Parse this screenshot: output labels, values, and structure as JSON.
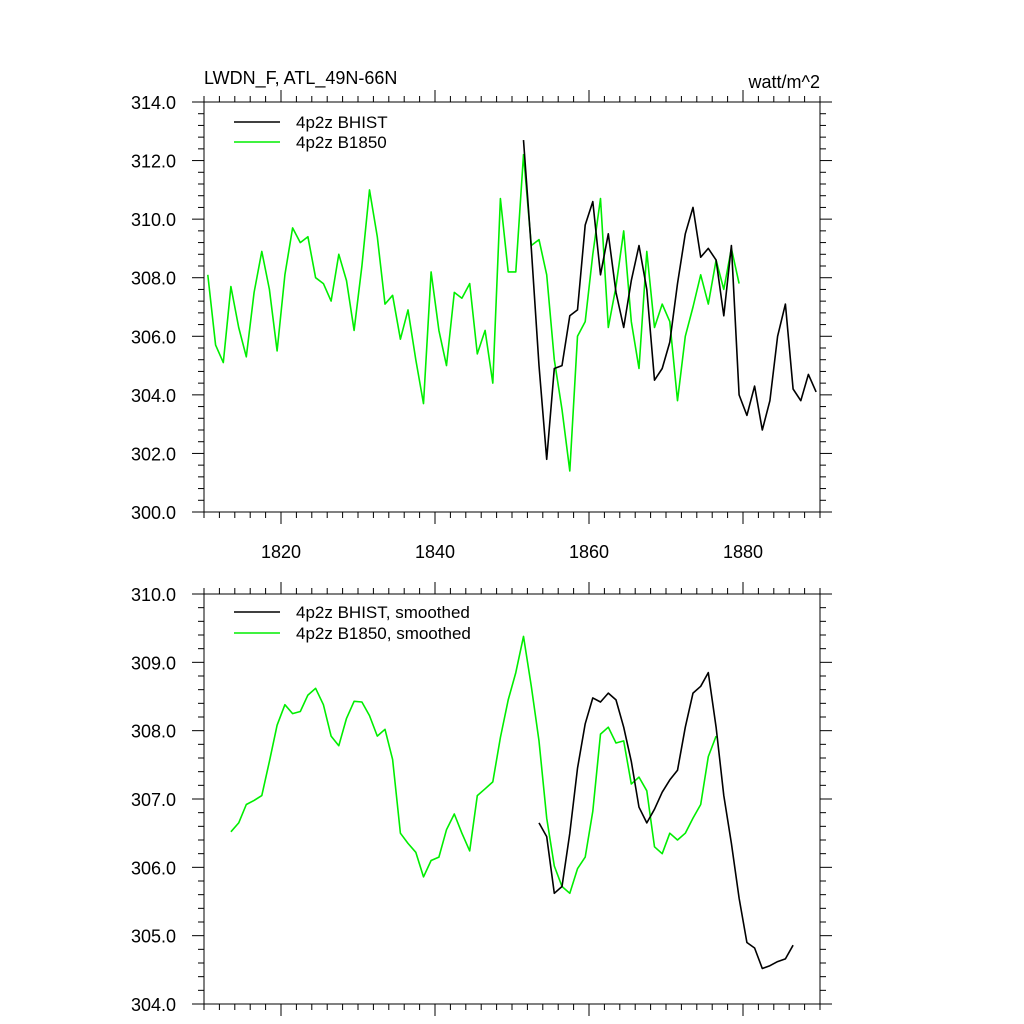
{
  "title_left": "LWDN_F, ATL_49N-66N",
  "title_right": "watt/m^2",
  "colors": {
    "bhist": "#000000",
    "b1850": "#00ee00"
  },
  "chart_data": [
    {
      "type": "line",
      "title": "LWDN_F, ATL_49N-66N",
      "units": "watt/m^2",
      "xlim": [
        1810,
        1890
      ],
      "ylim": [
        300,
        314
      ],
      "xticks": [
        1820,
        1840,
        1860,
        1880
      ],
      "xtick_labels": [
        "1820",
        "1840",
        "1860",
        "1880"
      ],
      "yticks": [
        300,
        302,
        304,
        306,
        308,
        310,
        312,
        314
      ],
      "ytick_labels": [
        "300.0",
        "302.0",
        "304.0",
        "306.0",
        "308.0",
        "310.0",
        "312.0",
        "314.0"
      ],
      "legend_position": "top-left",
      "series": [
        {
          "name": "4p2z BHIST",
          "color": "#000000",
          "x": [
            1851.5,
            1852.5,
            1853.5,
            1854.5,
            1855.5,
            1856.5,
            1857.5,
            1858.5,
            1859.5,
            1860.5,
            1861.5,
            1862.5,
            1863.5,
            1864.5,
            1865.5,
            1866.5,
            1867.5,
            1868.5,
            1869.5,
            1870.5,
            1871.5,
            1872.5,
            1873.5,
            1874.5,
            1875.5,
            1876.5,
            1877.5,
            1878.5,
            1879.5,
            1880.5,
            1881.5,
            1882.5,
            1883.5,
            1884.5,
            1885.5,
            1886.5,
            1887.5,
            1888.5,
            1889.5
          ],
          "y": [
            312.7,
            309.0,
            305.0,
            301.8,
            304.9,
            305.0,
            306.7,
            306.9,
            309.8,
            310.6,
            308.1,
            309.5,
            307.5,
            306.3,
            307.9,
            309.1,
            307.6,
            304.5,
            304.9,
            305.8,
            307.8,
            309.5,
            310.4,
            308.7,
            309.0,
            308.6,
            306.7,
            309.1,
            304.0,
            303.3,
            304.3,
            302.8,
            303.8,
            306.0,
            307.1,
            304.2,
            303.8,
            304.7,
            304.1
          ]
        },
        {
          "name": "4p2z B1850",
          "color": "#00ee00",
          "x": [
            1810.5,
            1811.5,
            1812.5,
            1813.5,
            1814.5,
            1815.5,
            1816.5,
            1817.5,
            1818.5,
            1819.5,
            1820.5,
            1821.5,
            1822.5,
            1823.5,
            1824.5,
            1825.5,
            1826.5,
            1827.5,
            1828.5,
            1829.5,
            1830.5,
            1831.5,
            1832.5,
            1833.5,
            1834.5,
            1835.5,
            1836.5,
            1837.5,
            1838.5,
            1839.5,
            1840.5,
            1841.5,
            1842.5,
            1843.5,
            1844.5,
            1845.5,
            1846.5,
            1847.5,
            1848.5,
            1849.5,
            1850.5,
            1851.5,
            1852.5,
            1853.5,
            1854.5,
            1855.5,
            1856.5,
            1857.5,
            1858.5,
            1859.5,
            1860.5,
            1861.5,
            1862.5,
            1863.5,
            1864.5,
            1865.5,
            1866.5,
            1867.5,
            1868.5,
            1869.5,
            1870.5,
            1871.5,
            1872.5,
            1873.5,
            1874.5,
            1875.5,
            1876.5,
            1877.5,
            1878.5,
            1879.5
          ],
          "y": [
            308.1,
            305.7,
            305.1,
            307.7,
            306.3,
            305.3,
            307.5,
            308.9,
            307.6,
            305.5,
            308.1,
            309.7,
            309.2,
            309.4,
            308.0,
            307.8,
            307.2,
            308.8,
            307.9,
            306.2,
            308.4,
            311.0,
            309.4,
            307.1,
            307.4,
            305.9,
            306.9,
            305.2,
            303.7,
            308.2,
            306.2,
            305.0,
            307.5,
            307.3,
            307.8,
            305.4,
            306.2,
            304.4,
            310.7,
            308.2,
            308.2,
            312.2,
            309.1,
            309.3,
            308.1,
            305.2,
            303.5,
            301.4,
            306.0,
            306.5,
            308.8,
            310.7,
            306.3,
            307.7,
            309.6,
            306.5,
            304.9,
            308.9,
            306.3,
            307.1,
            306.5,
            303.8,
            306.0,
            307.0,
            308.1,
            307.1,
            308.6,
            307.6,
            309.0,
            307.8
          ]
        }
      ]
    },
    {
      "type": "line",
      "xlim": [
        1810,
        1890
      ],
      "ylim": [
        304,
        310
      ],
      "xticks": [
        1820,
        1840,
        1860,
        1880
      ],
      "yticks": [
        304,
        305,
        306,
        307,
        308,
        309,
        310
      ],
      "ytick_labels": [
        "304.0",
        "305.0",
        "306.0",
        "307.0",
        "308.0",
        "309.0",
        "310.0"
      ],
      "legend_position": "top-left",
      "series": [
        {
          "name": "4p2z BHIST, smoothed",
          "color": "#000000",
          "x": [
            1853.5,
            1854.5,
            1855.5,
            1856.5,
            1857.5,
            1858.5,
            1859.5,
            1860.5,
            1861.5,
            1862.5,
            1863.5,
            1864.5,
            1865.5,
            1866.5,
            1867.5,
            1868.5,
            1869.5,
            1870.5,
            1871.5,
            1872.5,
            1873.5,
            1874.5,
            1875.5,
            1876.5,
            1877.5,
            1878.5,
            1879.5,
            1880.5,
            1881.5,
            1882.5,
            1883.5,
            1884.5,
            1885.5,
            1886.5
          ],
          "y": [
            306.65,
            306.45,
            305.62,
            305.72,
            306.5,
            307.45,
            308.1,
            308.48,
            308.42,
            308.55,
            308.45,
            308.05,
            307.55,
            306.88,
            306.65,
            306.85,
            307.1,
            307.28,
            307.42,
            308.05,
            308.55,
            308.65,
            308.85,
            308.05,
            307.05,
            306.35,
            305.55,
            304.9,
            304.82,
            304.52,
            304.56,
            304.62,
            304.66,
            304.86
          ]
        },
        {
          "name": "4p2z B1850, smoothed",
          "color": "#00ee00",
          "x": [
            1813.5,
            1814.5,
            1815.5,
            1816.5,
            1817.5,
            1818.5,
            1819.5,
            1820.5,
            1821.5,
            1822.5,
            1823.5,
            1824.5,
            1825.5,
            1826.5,
            1827.5,
            1828.5,
            1829.5,
            1830.5,
            1831.5,
            1832.5,
            1833.5,
            1834.5,
            1835.5,
            1836.5,
            1837.5,
            1838.5,
            1839.5,
            1840.5,
            1841.5,
            1842.5,
            1843.5,
            1844.5,
            1845.5,
            1846.5,
            1847.5,
            1848.5,
            1849.5,
            1850.5,
            1851.5,
            1852.5,
            1853.5,
            1854.5,
            1855.5,
            1856.5,
            1857.5,
            1858.5,
            1859.5,
            1860.5,
            1861.5,
            1862.5,
            1863.5,
            1864.5,
            1865.5,
            1866.5,
            1867.5,
            1868.5,
            1869.5,
            1870.5,
            1871.5,
            1872.5,
            1873.5,
            1874.5,
            1875.5,
            1876.5
          ],
          "y": [
            306.52,
            306.65,
            306.92,
            306.98,
            307.05,
            307.55,
            308.08,
            308.38,
            308.25,
            308.28,
            308.52,
            308.62,
            308.38,
            307.92,
            307.78,
            308.18,
            308.43,
            308.42,
            308.22,
            307.92,
            308.02,
            307.58,
            306.5,
            306.35,
            306.22,
            305.86,
            306.1,
            306.15,
            306.55,
            306.78,
            306.5,
            306.24,
            307.05,
            307.15,
            307.25,
            307.9,
            308.45,
            308.85,
            309.38,
            308.65,
            307.85,
            306.72,
            306.02,
            305.72,
            305.62,
            305.98,
            306.15,
            306.82,
            307.95,
            308.05,
            307.82,
            307.85,
            307.22,
            307.32,
            307.12,
            306.3,
            306.2,
            306.5,
            306.4,
            306.5,
            306.72,
            306.92,
            307.62,
            307.92
          ]
        }
      ]
    }
  ]
}
